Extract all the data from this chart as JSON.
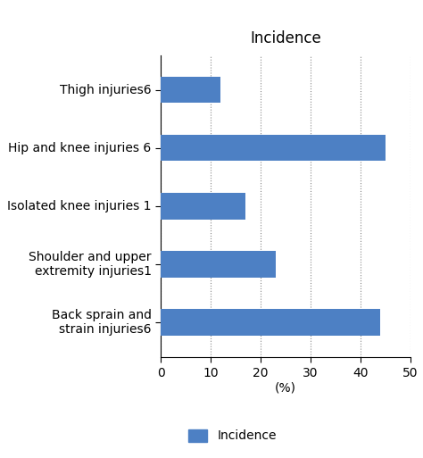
{
  "categories": [
    "Back sprain and\nstrain injuries6",
    "Shoulder and upper\nextremity injuries1",
    "Isolated knee injuries 1",
    "Hip and knee injuries 6",
    "Thigh injuries6"
  ],
  "values": [
    44,
    23,
    17,
    45,
    12
  ],
  "bar_color": "#4d80c4",
  "title": "Incidence",
  "xlabel": "(%)",
  "xlim": [
    0,
    50
  ],
  "xticks": [
    0,
    10,
    20,
    30,
    40,
    50
  ],
  "legend_label": "Incidence",
  "title_fontsize": 12,
  "label_fontsize": 10,
  "tick_fontsize": 10,
  "xlabel_fontsize": 10,
  "bar_height": 0.45
}
